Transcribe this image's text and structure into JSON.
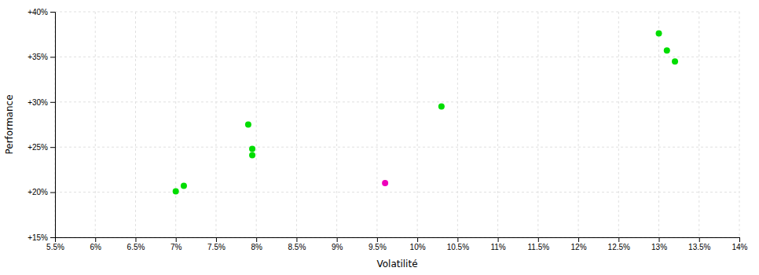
{
  "chart_data": {
    "type": "scatter",
    "xlabel": "Volatilité",
    "ylabel": "Performance",
    "xlim": [
      0.055,
      0.14
    ],
    "ylim": [
      0.15,
      0.4
    ],
    "xticks": [
      {
        "value": 0.055,
        "label": "5.5%"
      },
      {
        "value": 0.06,
        "label": "6%"
      },
      {
        "value": 0.065,
        "label": "6.5%"
      },
      {
        "value": 0.07,
        "label": "7%"
      },
      {
        "value": 0.075,
        "label": "7.5%"
      },
      {
        "value": 0.08,
        "label": "8%"
      },
      {
        "value": 0.085,
        "label": "8.5%"
      },
      {
        "value": 0.09,
        "label": "9%"
      },
      {
        "value": 0.095,
        "label": "9.5%"
      },
      {
        "value": 0.1,
        "label": "10%"
      },
      {
        "value": 0.105,
        "label": "10.5%"
      },
      {
        "value": 0.11,
        "label": "11%"
      },
      {
        "value": 0.115,
        "label": "11.5%"
      },
      {
        "value": 0.12,
        "label": "12%"
      },
      {
        "value": 0.125,
        "label": "12.5%"
      },
      {
        "value": 0.13,
        "label": "13%"
      },
      {
        "value": 0.135,
        "label": "13.5%"
      },
      {
        "value": 0.14,
        "label": "14%"
      }
    ],
    "yticks": [
      {
        "value": 0.15,
        "label": "+15%"
      },
      {
        "value": 0.2,
        "label": "+20%"
      },
      {
        "value": 0.25,
        "label": "+25%"
      },
      {
        "value": 0.3,
        "label": "+30%"
      },
      {
        "value": 0.35,
        "label": "+35%"
      },
      {
        "value": 0.4,
        "label": "+40%"
      }
    ],
    "grid": true,
    "series": [
      {
        "color": "#00dd00",
        "x": [
          0.07,
          0.071,
          0.079,
          0.0795,
          0.0795,
          0.103,
          0.13,
          0.131,
          0.132
        ],
        "values": [
          0.201,
          0.207,
          0.275,
          0.248,
          0.241,
          0.295,
          0.376,
          0.357,
          0.345
        ]
      },
      {
        "color": "#ee00bb",
        "x": [
          0.096
        ],
        "values": [
          0.21
        ]
      }
    ]
  }
}
